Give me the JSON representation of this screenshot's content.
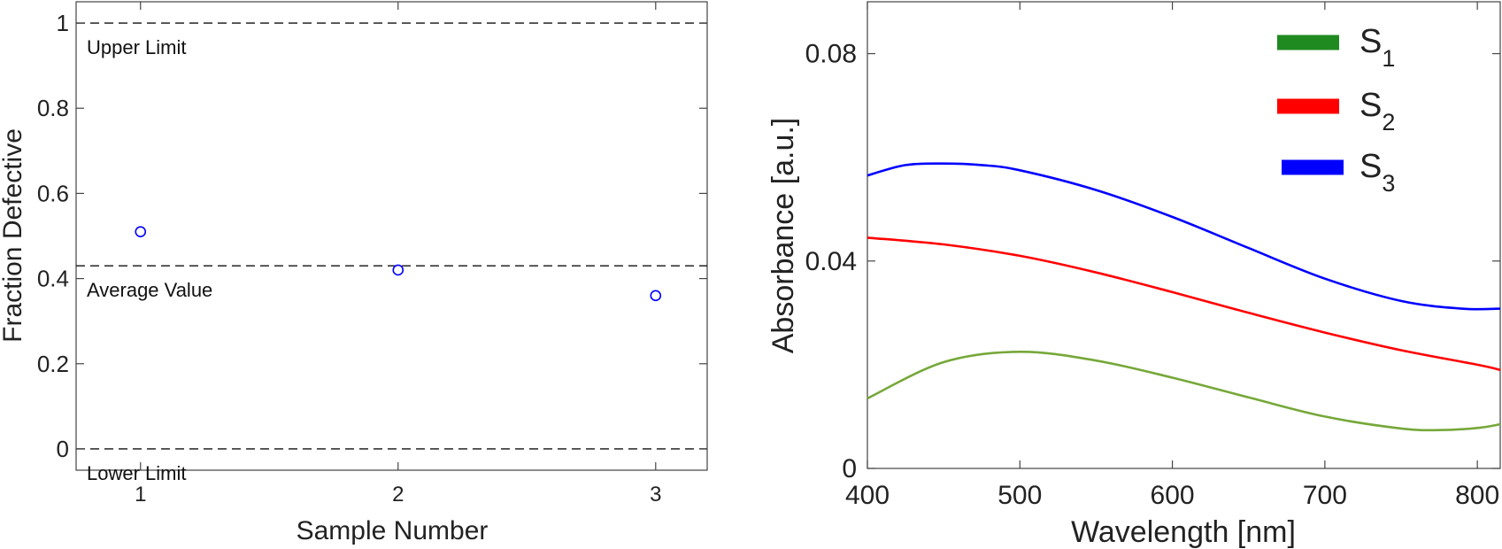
{
  "chart_data": [
    {
      "type": "scatter",
      "xlabel": "Sample Number",
      "ylabel": "Fraction Defective",
      "xlim": [
        0.75,
        3.2
      ],
      "ylim": [
        -0.05,
        1.05
      ],
      "xticks": [
        "1",
        "2",
        "3"
      ],
      "yticks": [
        "0",
        "0.2",
        "0.4",
        "0.6",
        "0.8",
        "1"
      ],
      "series": [
        {
          "x": [
            1,
            2,
            3
          ],
          "y": [
            0.51,
            0.42,
            0.36
          ],
          "marker": "circle-open",
          "color": "#0000ff"
        }
      ],
      "reference_lines": [
        {
          "y": 1.0,
          "label": "Upper Limit",
          "style": "dashed"
        },
        {
          "y": 0.43,
          "label": "Average Value",
          "style": "dashed"
        },
        {
          "y": 0.0,
          "label": "Lower Limit",
          "style": "dashed"
        }
      ],
      "grid": false
    },
    {
      "type": "line",
      "xlabel": "Wavelength [nm]",
      "ylabel": "Absorbance [a.u.]",
      "xlim": [
        400,
        815
      ],
      "ylim": [
        0,
        0.09
      ],
      "xticks": [
        "400",
        "500",
        "600",
        "700",
        "800"
      ],
      "yticks": [
        "0",
        "0.04",
        "0.08"
      ],
      "legend": "top-right",
      "series": [
        {
          "name": "S",
          "subscript": "1",
          "color": "#76a83a",
          "legend_color": "#1f8a1f",
          "label_color": "#2a8a1f",
          "x": [
            400,
            450,
            500,
            550,
            600,
            650,
            700,
            750,
            775,
            800,
            815
          ],
          "y": [
            0.0135,
            0.0205,
            0.0225,
            0.0208,
            0.0175,
            0.0137,
            0.01,
            0.0077,
            0.0074,
            0.0078,
            0.0085
          ]
        },
        {
          "name": "S",
          "subscript": "2",
          "color": "#ff0000",
          "legend_color": "#ff0000",
          "label_color": "#ff0000",
          "x": [
            400,
            450,
            500,
            550,
            600,
            650,
            700,
            750,
            800,
            815
          ],
          "y": [
            0.0445,
            0.0432,
            0.041,
            0.0378,
            0.034,
            0.03,
            0.0262,
            0.0228,
            0.02,
            0.019
          ]
        },
        {
          "name": "S",
          "subscript": "3",
          "color": "#0000ff",
          "legend_color": "#0000ff",
          "label_color": "#0000ff",
          "x": [
            400,
            425,
            450,
            475,
            500,
            550,
            600,
            650,
            700,
            750,
            790,
            815
          ],
          "y": [
            0.0565,
            0.0585,
            0.0588,
            0.0585,
            0.0575,
            0.0537,
            0.0485,
            0.0425,
            0.0366,
            0.0323,
            0.0308,
            0.0308
          ]
        }
      ],
      "grid": false
    }
  ]
}
